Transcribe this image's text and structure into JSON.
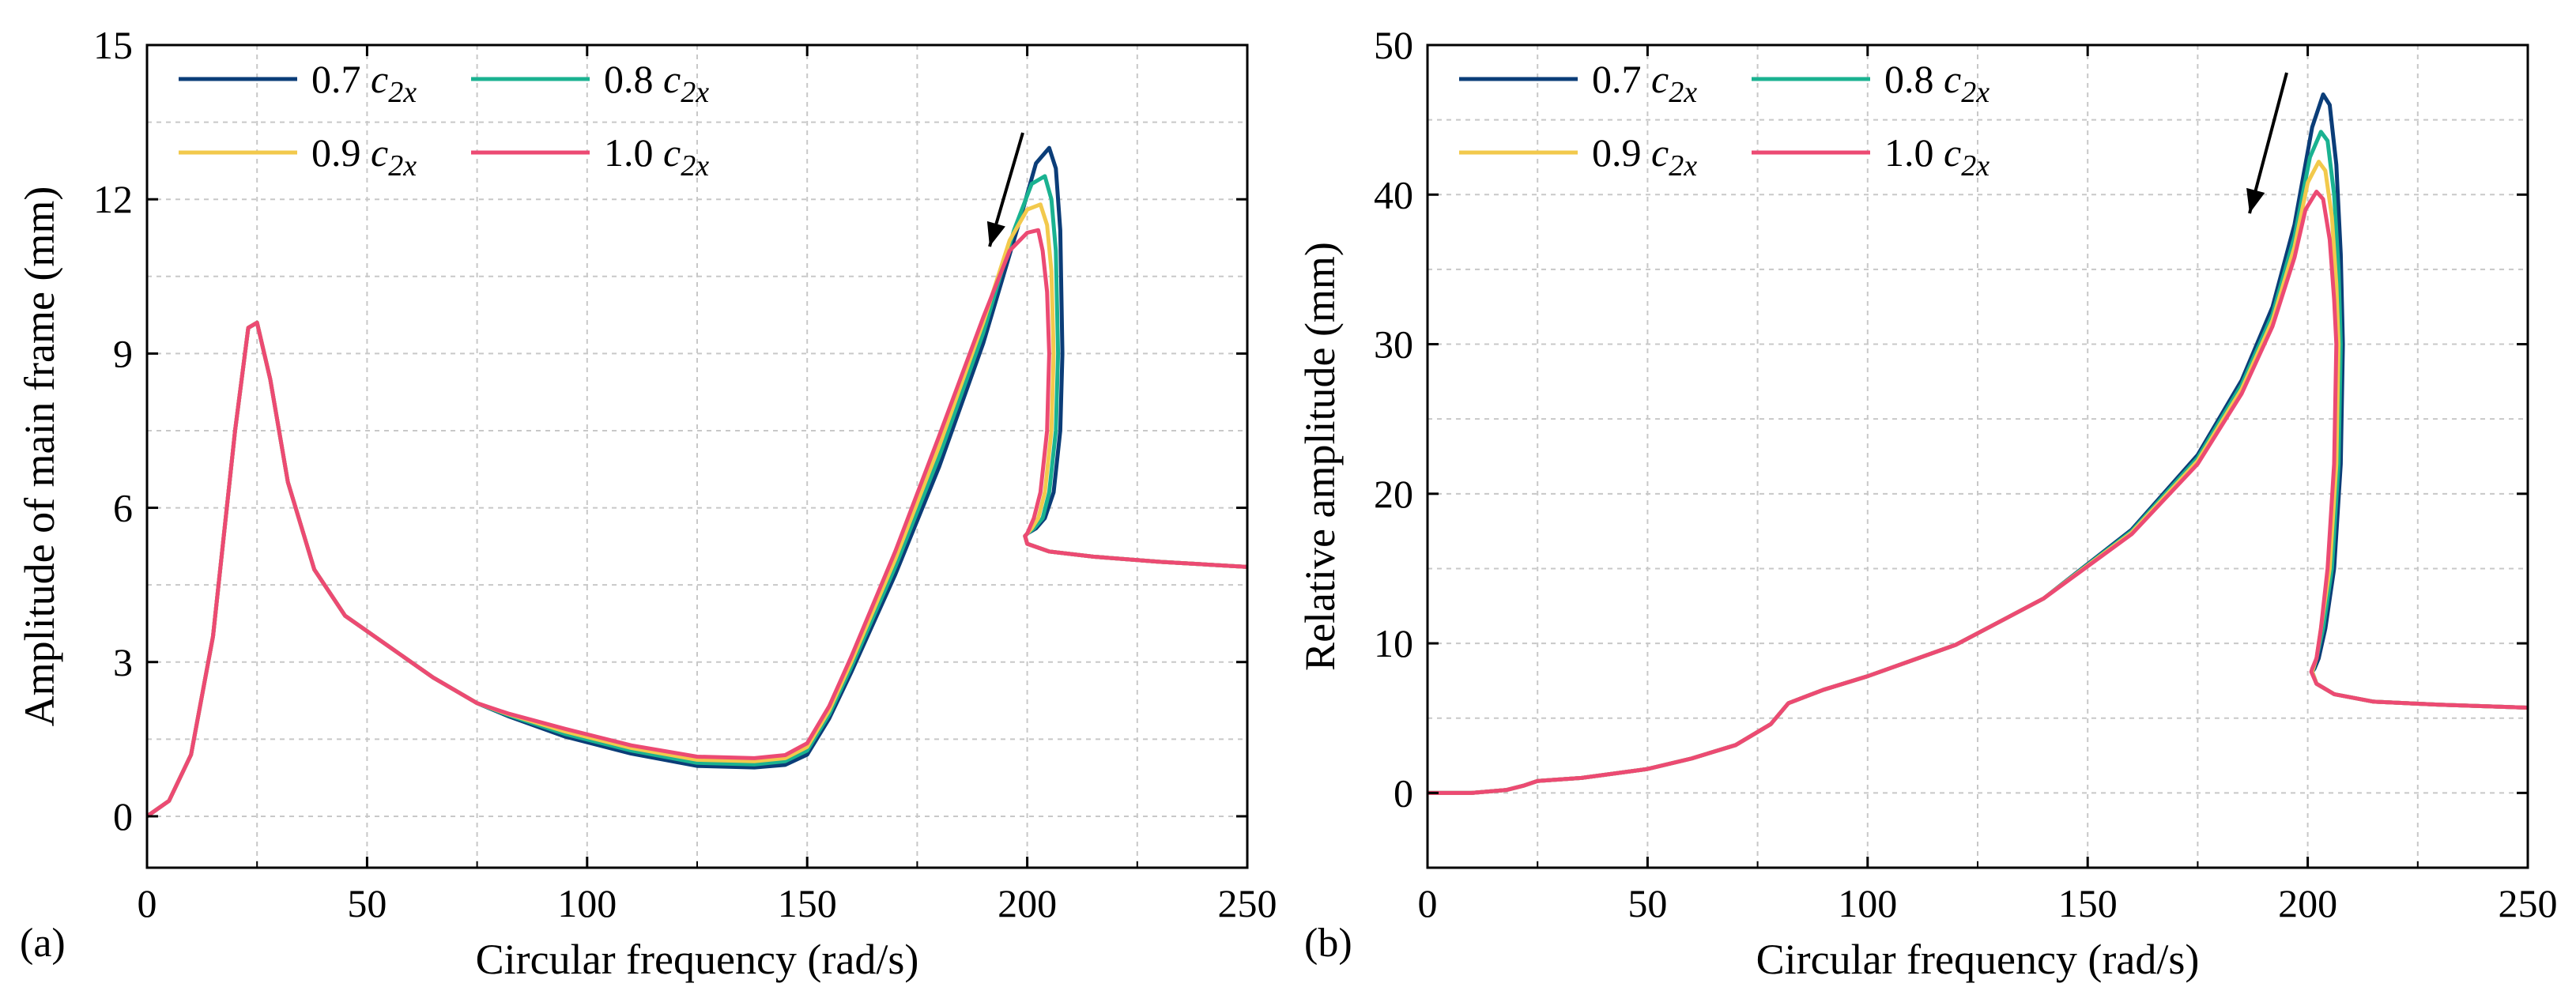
{
  "figure": {
    "colors": {
      "c07": "#0b3d78",
      "c08": "#1ab291",
      "c09": "#f2c94c",
      "c10": "#ec4a73"
    }
  },
  "chart_data": [
    {
      "type": "line",
      "panel_label": "(a)",
      "xlabel": "Circular frequency (rad/s)",
      "ylabel": "Amplitude of main frame (mm)",
      "xlim": [
        0,
        250
      ],
      "ylim": [
        -1,
        15
      ],
      "xticks": [
        0,
        50,
        100,
        150,
        200,
        250
      ],
      "yticks": [
        0,
        3,
        6,
        9,
        12,
        15
      ],
      "grid": true,
      "legend_position": "top-left",
      "annotation": "arrow pointing down-left near resonance peak (increasing damping)",
      "series": [
        {
          "name": "0.7",
          "color_key": "c07",
          "legend_num": "0.7 ",
          "legend_sym": "c",
          "legend_sub": "2x",
          "x": [
            0,
            5,
            10,
            15,
            20,
            23,
            25,
            28,
            32,
            38,
            45,
            55,
            65,
            75,
            82,
            95,
            110,
            125,
            138,
            145,
            150,
            155,
            160,
            170,
            180,
            190,
            198,
            202,
            205,
            206.5,
            207.5,
            208,
            207.5,
            206,
            204,
            202,
            200,
            199.5,
            200,
            205,
            215,
            230,
            250
          ],
          "y": [
            0,
            0.3,
            1.2,
            3.5,
            7.5,
            9.5,
            9.6,
            8.5,
            6.5,
            4.8,
            3.9,
            3.3,
            2.7,
            2.2,
            1.95,
            1.55,
            1.22,
            0.98,
            0.95,
            1.0,
            1.2,
            1.9,
            2.8,
            4.7,
            6.8,
            9.2,
            11.5,
            12.7,
            13.0,
            12.6,
            11.4,
            9,
            7.5,
            6.3,
            5.8,
            5.6,
            5.5,
            5.45,
            5.3,
            5.15,
            5.05,
            4.95,
            4.85
          ]
        },
        {
          "name": "0.8",
          "color_key": "c08",
          "legend_num": "0.8 ",
          "legend_sym": "c",
          "legend_sub": "2x",
          "x": [
            0,
            5,
            10,
            15,
            20,
            23,
            25,
            28,
            32,
            38,
            45,
            55,
            65,
            75,
            82,
            95,
            110,
            125,
            138,
            145,
            150,
            155,
            160,
            170,
            180,
            190,
            197,
            201,
            204,
            205.5,
            206.5,
            207,
            206.5,
            205,
            203.5,
            201.5,
            200,
            199.5,
            200,
            205,
            215,
            230,
            250
          ],
          "y": [
            0,
            0.3,
            1.2,
            3.5,
            7.5,
            9.5,
            9.6,
            8.5,
            6.5,
            4.8,
            3.9,
            3.3,
            2.7,
            2.2,
            1.97,
            1.6,
            1.28,
            1.04,
            1.01,
            1.07,
            1.28,
            1.98,
            2.9,
            4.85,
            7.0,
            9.4,
            11.4,
            12.3,
            12.45,
            12.0,
            11.0,
            9,
            7.5,
            6.3,
            5.8,
            5.6,
            5.5,
            5.45,
            5.3,
            5.15,
            5.05,
            4.95,
            4.85
          ]
        },
        {
          "name": "0.9",
          "color_key": "c09",
          "legend_num": "0.9 ",
          "legend_sym": "c",
          "legend_sub": "2x",
          "x": [
            0,
            5,
            10,
            15,
            20,
            23,
            25,
            28,
            32,
            38,
            45,
            55,
            65,
            75,
            82,
            95,
            110,
            125,
            138,
            145,
            150,
            155,
            160,
            170,
            180,
            190,
            196,
            200,
            203,
            204.5,
            205.5,
            206,
            205.5,
            204,
            202.5,
            201,
            200,
            199.5,
            200,
            205,
            215,
            230,
            250
          ],
          "y": [
            0,
            0.3,
            1.2,
            3.5,
            7.5,
            9.5,
            9.6,
            8.5,
            6.5,
            4.8,
            3.9,
            3.3,
            2.7,
            2.2,
            1.99,
            1.65,
            1.33,
            1.1,
            1.07,
            1.13,
            1.35,
            2.06,
            3.0,
            5.0,
            7.2,
            9.6,
            11.2,
            11.8,
            11.9,
            11.5,
            10.6,
            9,
            7.5,
            6.3,
            5.8,
            5.6,
            5.5,
            5.45,
            5.3,
            5.15,
            5.05,
            4.95,
            4.85
          ]
        },
        {
          "name": "1.0",
          "color_key": "c10",
          "legend_num": "1.0 ",
          "legend_sym": "c",
          "legend_sub": "2x",
          "x": [
            0,
            5,
            10,
            15,
            20,
            23,
            25,
            28,
            32,
            38,
            45,
            55,
            65,
            75,
            82,
            95,
            110,
            125,
            138,
            145,
            150,
            155,
            160,
            170,
            180,
            190,
            196,
            200,
            202.5,
            203.5,
            204.5,
            205,
            204.5,
            203,
            201.5,
            200.5,
            200,
            199.5,
            200,
            205,
            215,
            230,
            250
          ],
          "y": [
            0,
            0.3,
            1.2,
            3.5,
            7.5,
            9.5,
            9.6,
            8.5,
            6.5,
            4.8,
            3.9,
            3.3,
            2.7,
            2.2,
            2.0,
            1.7,
            1.38,
            1.16,
            1.13,
            1.19,
            1.42,
            2.14,
            3.1,
            5.15,
            7.4,
            9.7,
            11.0,
            11.35,
            11.4,
            11.0,
            10.2,
            9,
            7.5,
            6.3,
            5.8,
            5.6,
            5.5,
            5.45,
            5.3,
            5.15,
            5.05,
            4.95,
            4.85
          ]
        }
      ]
    },
    {
      "type": "line",
      "panel_label": "(b)",
      "xlabel": "Circular frequency (rad/s)",
      "ylabel": "Relative amplitude (mm)",
      "xlim": [
        0,
        250
      ],
      "ylim": [
        -5,
        50
      ],
      "xticks": [
        0,
        50,
        100,
        150,
        200,
        250
      ],
      "yticks": [
        0,
        10,
        20,
        30,
        40,
        50
      ],
      "grid": true,
      "legend_position": "top-left",
      "annotation": "arrow pointing down-left near resonance peak (increasing damping)",
      "series": [
        {
          "name": "0.7",
          "color_key": "c07",
          "legend_num": "0.7 ",
          "legend_sym": "c",
          "legend_sub": "2x",
          "x": [
            0,
            10,
            18,
            22,
            25,
            35,
            50,
            60,
            70,
            78,
            82,
            90,
            100,
            120,
            140,
            160,
            175,
            185,
            192,
            197,
            201,
            203.5,
            205,
            206.5,
            207.5,
            208,
            207.5,
            206,
            204,
            202.5,
            201.5,
            201,
            202,
            206,
            215,
            230,
            250
          ],
          "y": [
            0,
            0,
            0.2,
            0.5,
            0.8,
            1.0,
            1.6,
            2.3,
            3.2,
            4.6,
            6.0,
            6.9,
            7.8,
            9.9,
            13.0,
            17.6,
            22.6,
            27.6,
            32.5,
            38.0,
            44.5,
            46.7,
            46.0,
            42.0,
            36.0,
            30,
            22,
            15,
            11,
            9,
            8.3,
            8.1,
            7.3,
            6.6,
            6.1,
            5.9,
            5.7
          ]
        },
        {
          "name": "0.8",
          "color_key": "c08",
          "legend_num": "0.8 ",
          "legend_sym": "c",
          "legend_sub": "2x",
          "x": [
            0,
            10,
            18,
            22,
            25,
            35,
            50,
            60,
            70,
            78,
            82,
            90,
            100,
            120,
            140,
            160,
            175,
            185,
            192,
            197,
            200.5,
            203,
            204.5,
            206,
            207,
            207.5,
            207,
            205.5,
            203.5,
            202,
            201.3,
            201,
            202,
            206,
            215,
            230,
            250
          ],
          "y": [
            0,
            0,
            0.2,
            0.5,
            0.8,
            1.0,
            1.6,
            2.3,
            3.2,
            4.6,
            6.0,
            6.9,
            7.8,
            9.9,
            13.0,
            17.5,
            22.4,
            27.3,
            32.0,
            37.2,
            42.5,
            44.2,
            43.6,
            40.0,
            35.0,
            30,
            22,
            15,
            11,
            9,
            8.3,
            8.1,
            7.3,
            6.6,
            6.1,
            5.9,
            5.7
          ]
        },
        {
          "name": "0.9",
          "color_key": "c09",
          "legend_num": "0.9 ",
          "legend_sym": "c",
          "legend_sub": "2x",
          "x": [
            0,
            10,
            18,
            22,
            25,
            35,
            50,
            60,
            70,
            78,
            82,
            90,
            100,
            120,
            140,
            160,
            175,
            185,
            192,
            197,
            200,
            202.5,
            204,
            205.5,
            206.5,
            207,
            206.5,
            205,
            203,
            202,
            201.2,
            201,
            202,
            206,
            215,
            230,
            250
          ],
          "y": [
            0,
            0,
            0.2,
            0.5,
            0.8,
            1.0,
            1.6,
            2.3,
            3.2,
            4.6,
            6.0,
            6.9,
            7.8,
            9.9,
            13.0,
            17.4,
            22.2,
            27.0,
            31.6,
            36.5,
            40.8,
            42.2,
            41.6,
            38.5,
            34.0,
            30,
            22,
            15,
            11,
            9,
            8.3,
            8.1,
            7.3,
            6.6,
            6.1,
            5.9,
            5.7
          ]
        },
        {
          "name": "1.0",
          "color_key": "c10",
          "legend_num": "1.0 ",
          "legend_sym": "c",
          "legend_sub": "2x",
          "x": [
            0,
            10,
            18,
            22,
            25,
            35,
            50,
            60,
            70,
            78,
            82,
            90,
            100,
            120,
            140,
            160,
            175,
            185,
            192,
            197,
            199.5,
            202,
            203.5,
            205,
            206,
            206.5,
            206,
            204.5,
            203,
            202,
            201,
            200.8,
            202,
            206,
            215,
            230,
            250
          ],
          "y": [
            0,
            0,
            0.2,
            0.5,
            0.8,
            1.0,
            1.6,
            2.3,
            3.2,
            4.6,
            6.0,
            6.9,
            7.8,
            9.9,
            13.0,
            17.3,
            22.0,
            26.7,
            31.2,
            35.8,
            39.0,
            40.2,
            39.7,
            37.0,
            33.0,
            30,
            22,
            15,
            11,
            9,
            8.3,
            8.1,
            7.3,
            6.6,
            6.1,
            5.9,
            5.7
          ]
        }
      ]
    }
  ]
}
